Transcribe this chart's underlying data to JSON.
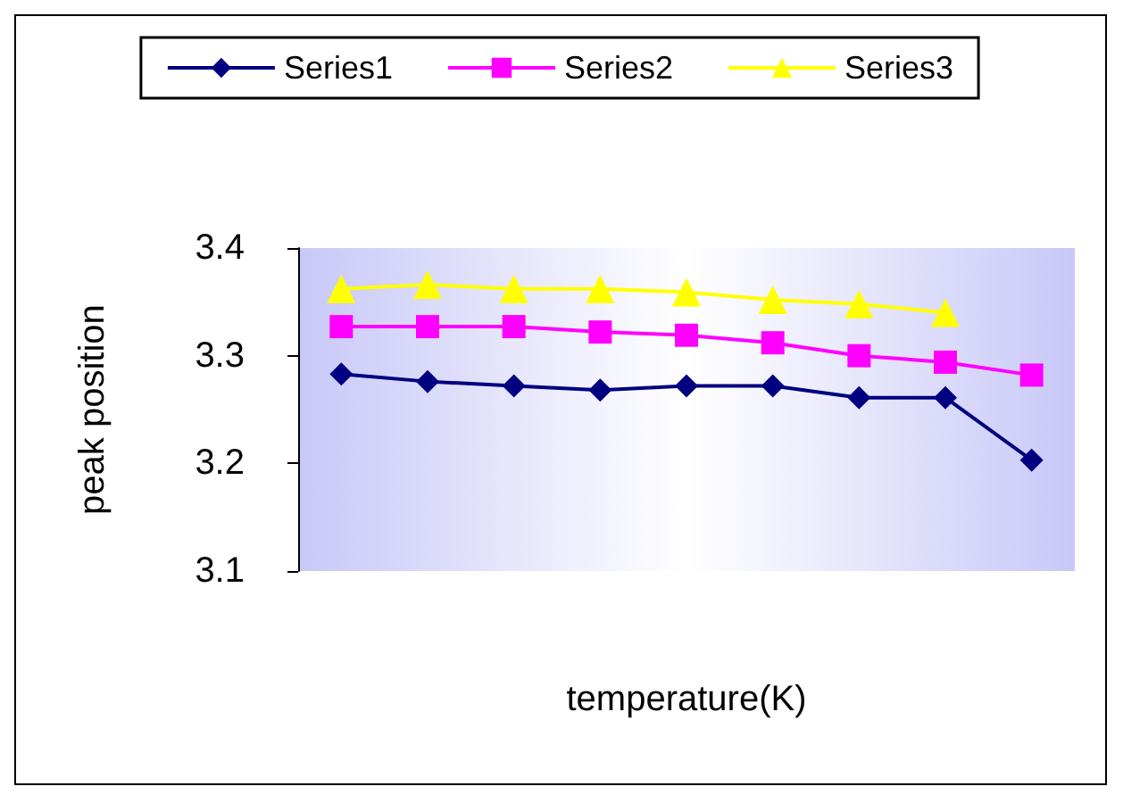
{
  "chart_data": {
    "type": "line",
    "xlabel": "temperature(K)",
    "ylabel": "peak position",
    "categories": [
      null,
      null,
      null,
      null,
      null,
      null,
      null,
      null,
      null
    ],
    "series": [
      {
        "name": "Series1",
        "color": "#000080",
        "marker": "diamond",
        "values": [
          3.283,
          3.276,
          3.272,
          3.268,
          3.272,
          3.272,
          3.261,
          3.261,
          3.203
        ]
      },
      {
        "name": "Series2",
        "color": "#ff00ff",
        "marker": "square",
        "values": [
          3.327,
          3.327,
          3.327,
          3.322,
          3.319,
          3.312,
          3.3,
          3.294,
          3.282
        ]
      },
      {
        "name": "Series3",
        "color": "#ffff00",
        "marker": "triangle",
        "values": [
          3.362,
          3.366,
          3.362,
          3.362,
          3.359,
          3.352,
          3.348,
          3.34,
          null
        ]
      }
    ],
    "ylim": [
      3.1,
      3.4
    ],
    "yticks": [
      3.1,
      3.2,
      3.3,
      3.4
    ],
    "tick_labels": "y",
    "grid": false,
    "legend": "top"
  }
}
